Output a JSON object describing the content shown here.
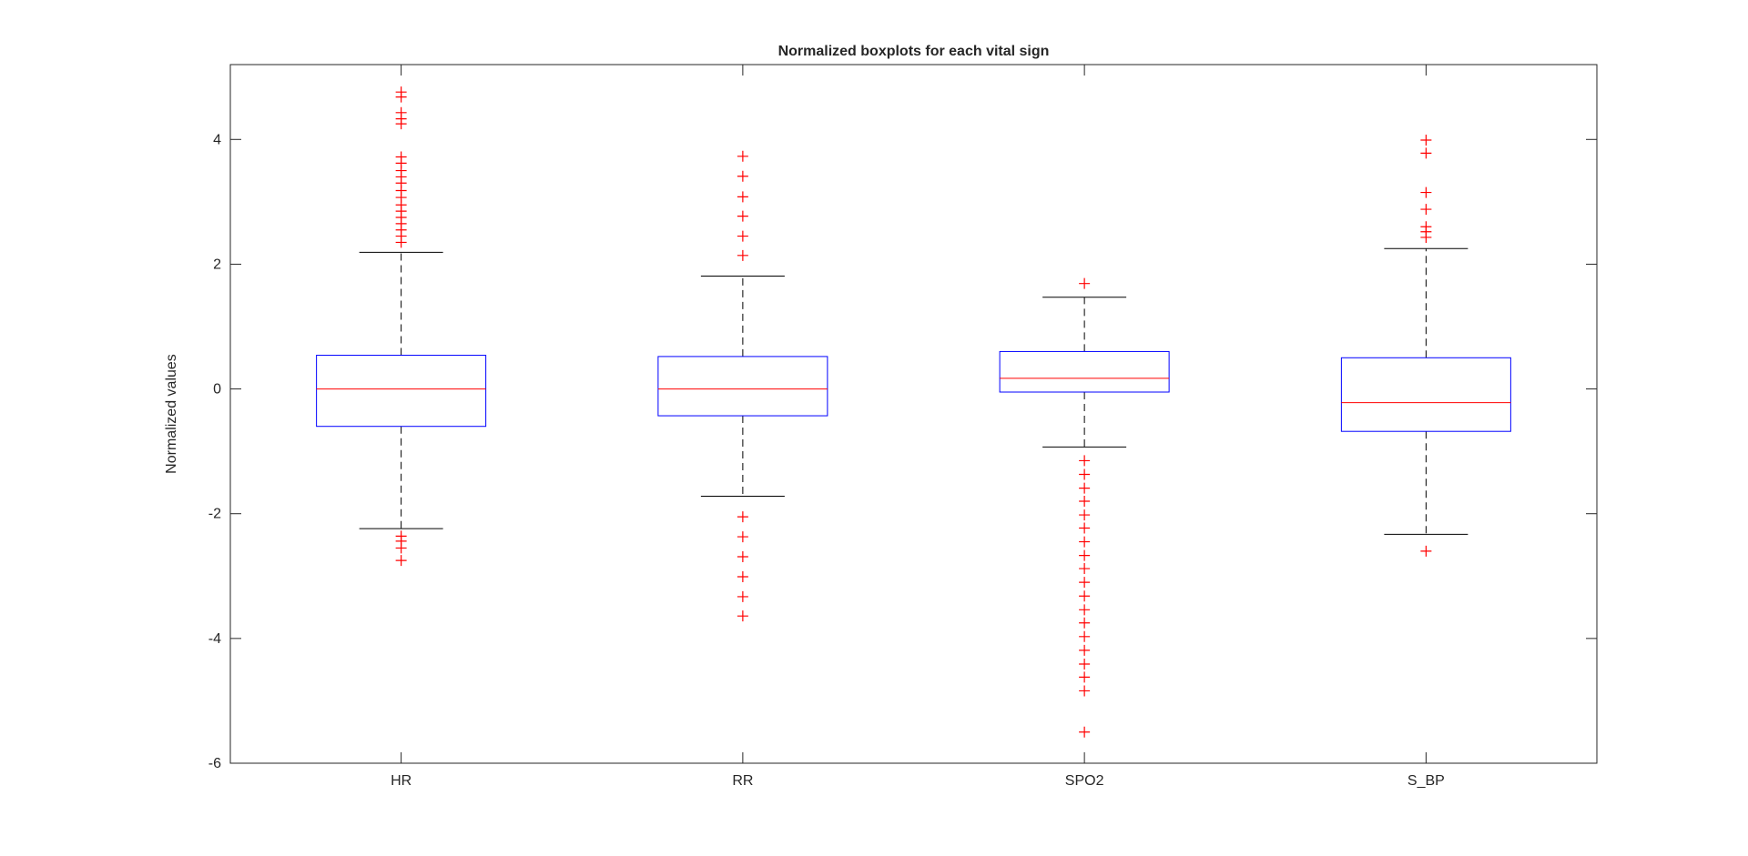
{
  "chart_data": {
    "type": "boxplot",
    "title": "Normalized boxplots for each vital sign",
    "xlabel": "",
    "ylabel": "Normalized values",
    "ylim": [
      -6,
      5.2
    ],
    "yticks": [
      -6,
      -4,
      -2,
      0,
      2,
      4
    ],
    "ytick_labels": [
      "-6",
      "-4",
      "-2",
      "0",
      "2",
      "4"
    ],
    "grid": false,
    "categories": [
      "HR",
      "RR",
      "SPO2",
      "S_BP"
    ],
    "boxes": [
      {
        "category": "HR",
        "q1": -0.6,
        "median": 0.0,
        "q3": 0.54,
        "whisker_low": -2.24,
        "whisker_high": 2.19,
        "outliers": [
          4.76,
          4.68,
          4.43,
          4.33,
          4.25,
          3.72,
          3.62,
          3.5,
          3.4,
          3.3,
          3.18,
          3.07,
          2.95,
          2.85,
          2.75,
          2.65,
          2.55,
          2.45,
          2.35,
          -2.36,
          -2.44,
          -2.55,
          -2.75
        ]
      },
      {
        "category": "RR",
        "q1": -0.43,
        "median": 0.0,
        "q3": 0.52,
        "whisker_low": -1.72,
        "whisker_high": 1.81,
        "outliers": [
          3.73,
          3.41,
          3.08,
          2.77,
          2.45,
          2.14,
          -2.05,
          -2.37,
          -2.69,
          -3.01,
          -3.33,
          -3.64
        ]
      },
      {
        "category": "SPO2",
        "q1": -0.05,
        "median": 0.17,
        "q3": 0.6,
        "whisker_low": -0.93,
        "whisker_high": 1.47,
        "outliers": [
          1.69,
          -1.15,
          -1.37,
          -1.59,
          -1.8,
          -2.02,
          -2.23,
          -2.45,
          -2.67,
          -2.88,
          -3.1,
          -3.32,
          -3.54,
          -3.75,
          -3.97,
          -4.19,
          -4.41,
          -4.62,
          -4.84,
          -5.5
        ]
      },
      {
        "category": "S_BP",
        "q1": -0.68,
        "median": -0.22,
        "q3": 0.5,
        "whisker_low": -2.33,
        "whisker_high": 2.25,
        "outliers": [
          3.99,
          3.78,
          3.15,
          2.88,
          2.6,
          2.52,
          2.43,
          -2.6
        ]
      }
    ],
    "colors": {
      "box": "#0000ff",
      "median": "#ff0000",
      "whisker": "#000000",
      "outlier": "#ff0000",
      "axes": "#262626"
    }
  }
}
